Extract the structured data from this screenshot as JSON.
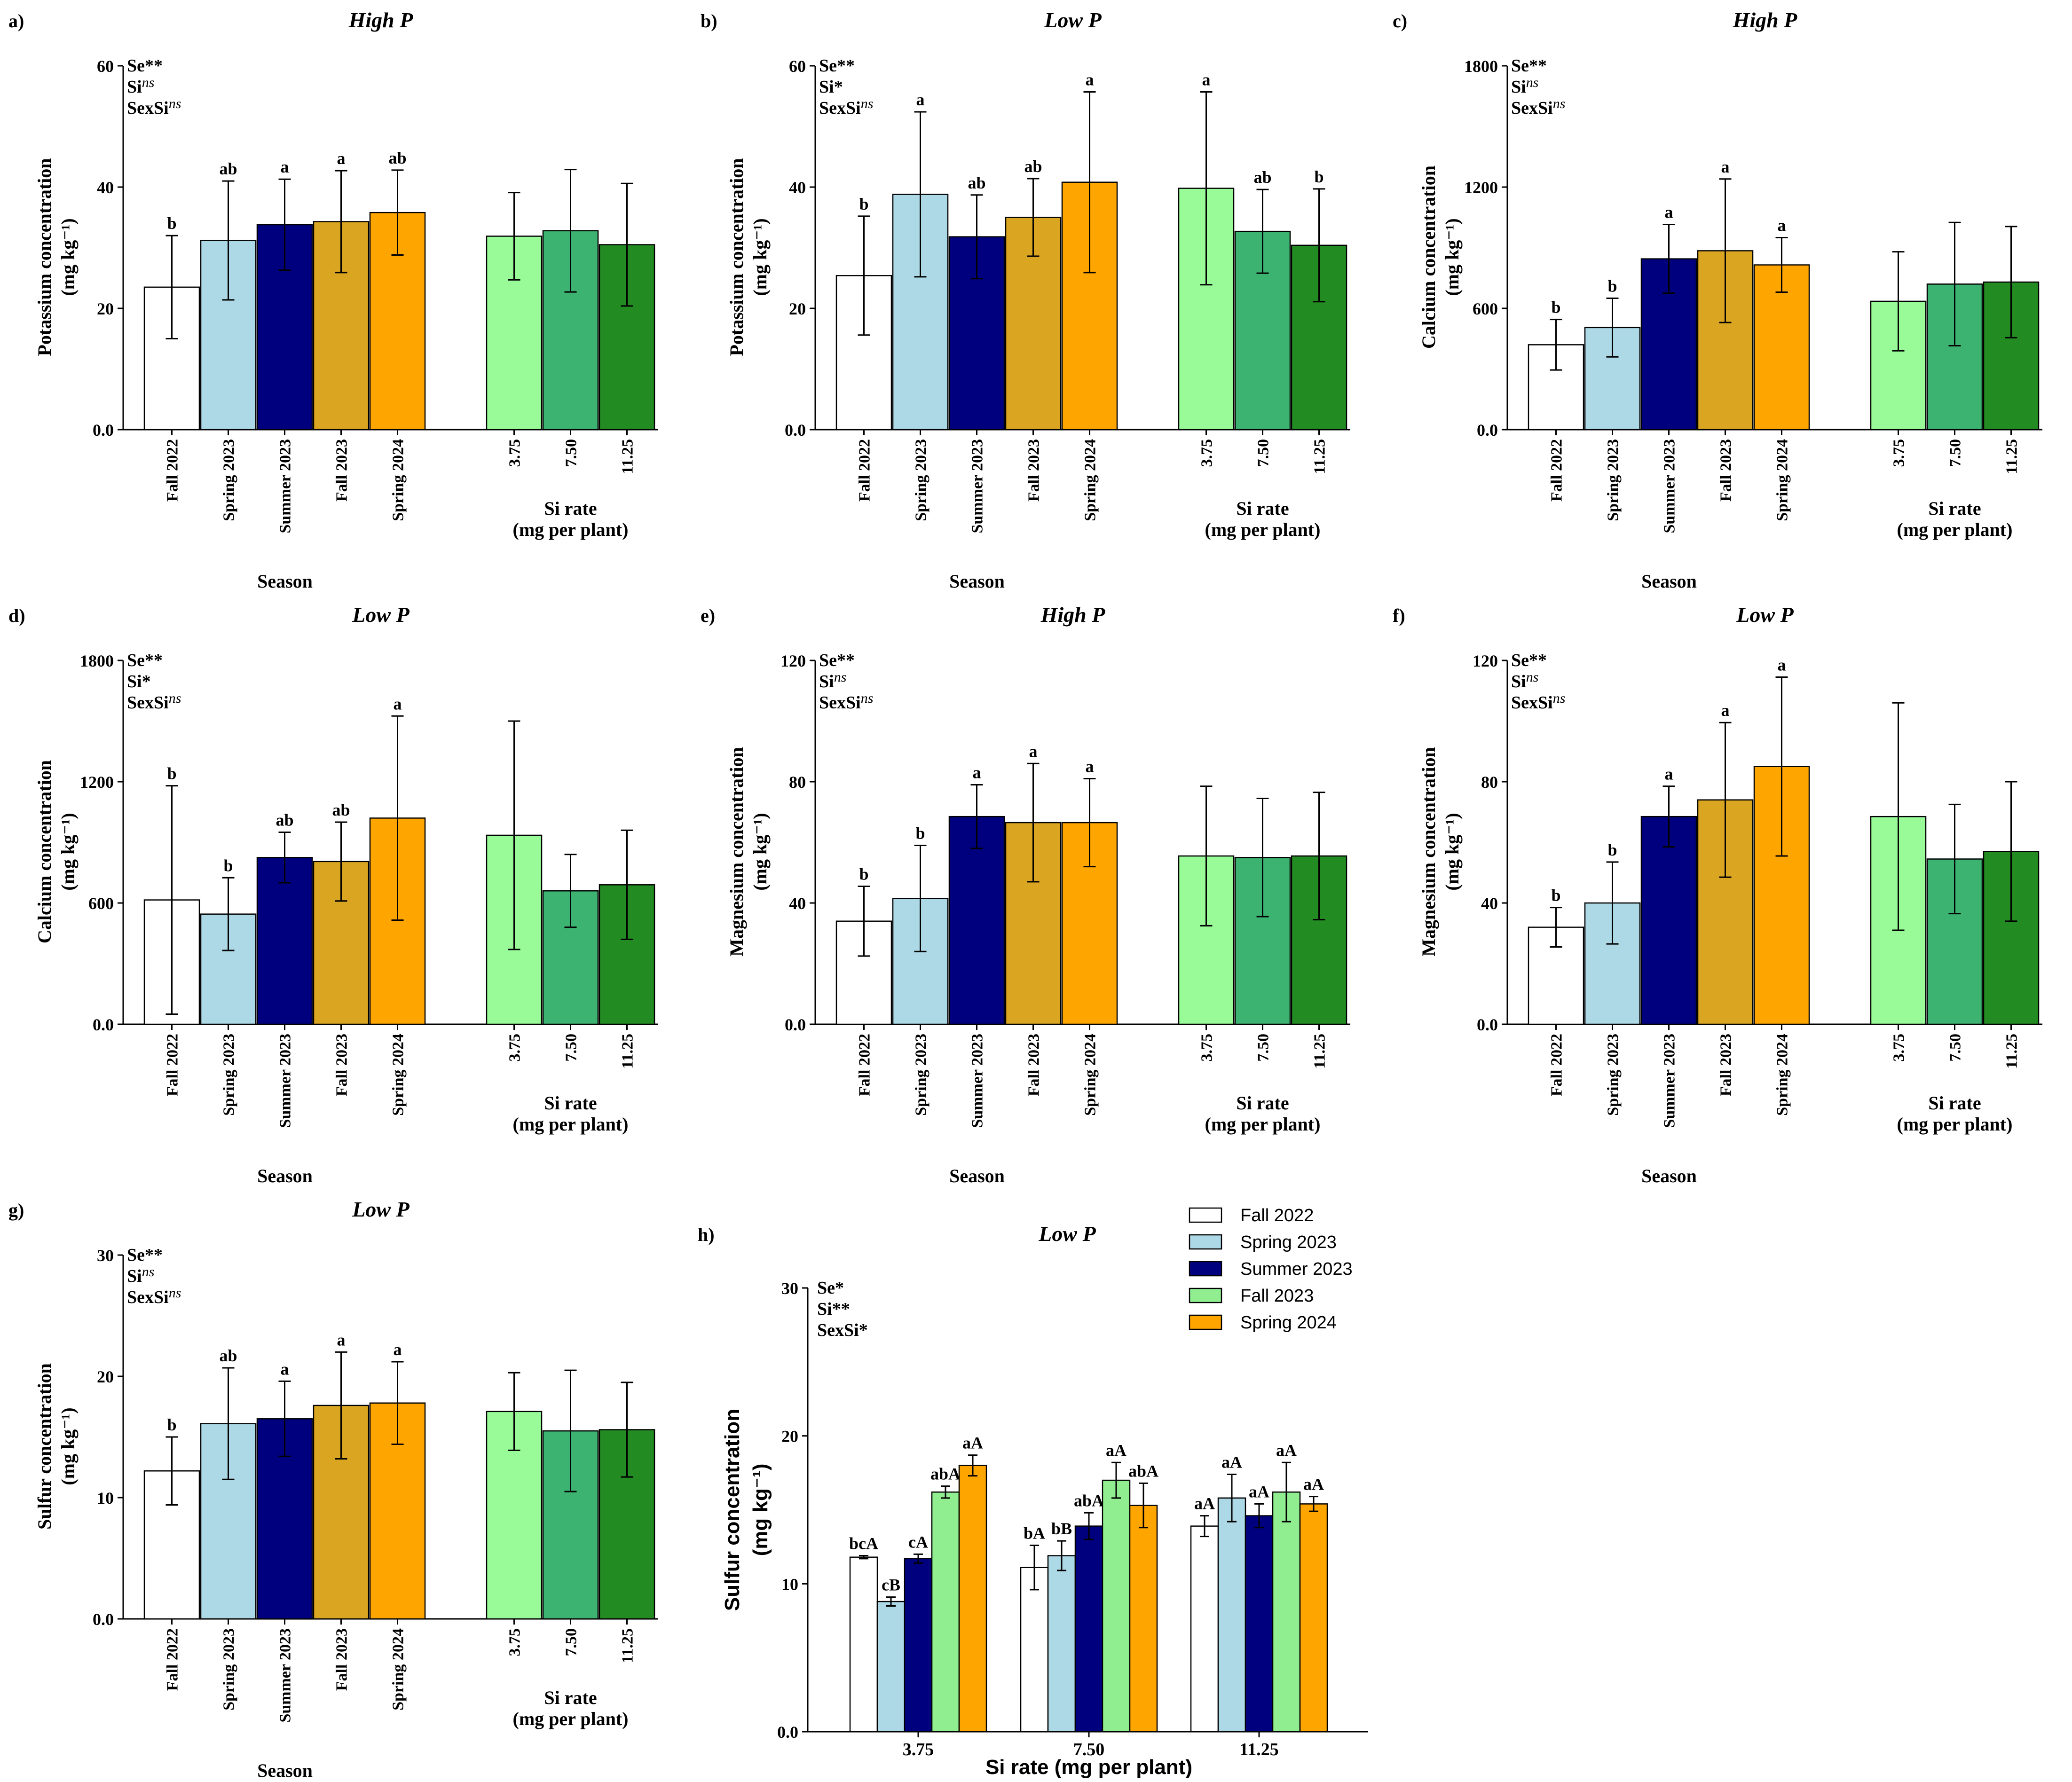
{
  "figure": {
    "season_colors": {
      "Fall 2022": "#ffffff",
      "Spring 2023": "#add8e6",
      "Summer 2023": "#00007f",
      "Fall 2023": "#daa520",
      "Spring 2024": "#ffa500",
      "3.75": "#98fb98",
      "7.50": "#3cb371",
      "11.25": "#228b22"
    },
    "h_colors": {
      "Fall 2022": "#ffffff",
      "Spring 2023": "#add8e6",
      "Summer 2023": "#00007f",
      "Fall 2023": "#90ee90",
      "Spring 2024": "#ffa500"
    },
    "legend": {
      "entries": [
        "Fall 2022",
        "Spring 2023",
        "Summer 2023",
        "Fall 2023",
        "Spring 2024"
      ]
    }
  },
  "chart_data": [
    {
      "type": "bar",
      "panel": "a)",
      "title": "High P",
      "ylabel": "Potassium concentration",
      "yunit": "(mg kg⁻¹)",
      "ylim": [
        0,
        60
      ],
      "yticks": [
        "0.0",
        "20",
        "40",
        "60"
      ],
      "stats": [
        [
          "Se",
          "**"
        ],
        [
          "Si",
          "ns"
        ],
        [
          "SexSi",
          "ns"
        ]
      ],
      "season_xlabel": "Season",
      "si_xlabel": [
        "Si rate",
        "(mg per plant)"
      ],
      "bars": [
        {
          "label": "Fall 2022",
          "value": 23.5,
          "err": 8.5,
          "letter": "b"
        },
        {
          "label": "Spring 2023",
          "value": 31.2,
          "err": 9.8,
          "letter": "ab"
        },
        {
          "label": "Summer 2023",
          "value": 33.8,
          "err": 7.5,
          "letter": "a"
        },
        {
          "label": "Fall 2023",
          "value": 34.3,
          "err": 8.4,
          "letter": "a"
        },
        {
          "label": "Spring 2024",
          "value": 35.8,
          "err": 7.0,
          "letter": "ab"
        },
        {
          "label": "3.75",
          "value": 31.9,
          "err": 7.2,
          "letter": ""
        },
        {
          "label": "7.50",
          "value": 32.8,
          "err": 10.1,
          "letter": ""
        },
        {
          "label": "11.25",
          "value": 30.5,
          "err": 10.1,
          "letter": ""
        }
      ]
    },
    {
      "type": "bar",
      "panel": "b)",
      "title": "Low P",
      "ylabel": "Potassium concentration",
      "yunit": "(mg kg⁻¹)",
      "ylim": [
        0,
        60
      ],
      "yticks": [
        "0.0",
        "20",
        "40",
        "60"
      ],
      "stats": [
        [
          "Se",
          "**"
        ],
        [
          "Si",
          "*"
        ],
        [
          "SexSi",
          "ns"
        ]
      ],
      "season_xlabel": "Season",
      "si_xlabel": [
        "Si rate",
        "(mg per plant)"
      ],
      "bars": [
        {
          "label": "Fall 2022",
          "value": 25.4,
          "err": 9.8,
          "letter": "b"
        },
        {
          "label": "Spring 2023",
          "value": 38.8,
          "err": 13.6,
          "letter": "a"
        },
        {
          "label": "Summer 2023",
          "value": 31.8,
          "err": 6.9,
          "letter": "ab"
        },
        {
          "label": "Fall 2023",
          "value": 35.0,
          "err": 6.4,
          "letter": "ab"
        },
        {
          "label": "Spring 2024",
          "value": 40.8,
          "err": 14.9,
          "letter": "a"
        },
        {
          "label": "3.75",
          "value": 39.8,
          "err": 15.9,
          "letter": "a"
        },
        {
          "label": "7.50",
          "value": 32.7,
          "err": 6.9,
          "letter": "ab"
        },
        {
          "label": "11.25",
          "value": 30.4,
          "err": 9.3,
          "letter": "b"
        }
      ]
    },
    {
      "type": "bar",
      "panel": "c)",
      "title": "High P",
      "ylabel": "Calcium concentration",
      "yunit": "(mg kg⁻¹)",
      "ylim": [
        0,
        1800
      ],
      "yticks": [
        "0.0",
        "600",
        "1200",
        "1800"
      ],
      "stats": [
        [
          "Se",
          "**"
        ],
        [
          "Si",
          "ns"
        ],
        [
          "SexSi",
          "ns"
        ]
      ],
      "season_xlabel": "Season",
      "si_xlabel": [
        "Si rate",
        "(mg per plant)"
      ],
      "bars": [
        {
          "label": "Fall 2022",
          "value": 420,
          "err": 125,
          "letter": "b"
        },
        {
          "label": "Spring 2023",
          "value": 505,
          "err": 145,
          "letter": "b"
        },
        {
          "label": "Summer 2023",
          "value": 845,
          "err": 170,
          "letter": "a"
        },
        {
          "label": "Fall 2023",
          "value": 885,
          "err": 355,
          "letter": "a"
        },
        {
          "label": "Spring 2024",
          "value": 815,
          "err": 135,
          "letter": "a"
        },
        {
          "label": "3.75",
          "value": 635,
          "err": 245,
          "letter": ""
        },
        {
          "label": "7.50",
          "value": 720,
          "err": 305,
          "letter": ""
        },
        {
          "label": "11.25",
          "value": 730,
          "err": 275,
          "letter": ""
        }
      ]
    },
    {
      "type": "bar",
      "panel": "d)",
      "title": "Low P",
      "ylabel": "Calcium concentration",
      "yunit": "(mg kg⁻¹)",
      "ylim": [
        0,
        1800
      ],
      "yticks": [
        "0.0",
        "600",
        "1200",
        "1800"
      ],
      "stats": [
        [
          "Se",
          "**"
        ],
        [
          "Si",
          "*"
        ],
        [
          "SexSi",
          "ns"
        ]
      ],
      "season_xlabel": "Season",
      "si_xlabel": [
        "Si rate",
        "(mg per plant)"
      ],
      "bars": [
        {
          "label": "Fall 2022",
          "value": 615,
          "err": 565,
          "letter": "b"
        },
        {
          "label": "Spring 2023",
          "value": 545,
          "err": 180,
          "letter": "b"
        },
        {
          "label": "Summer 2023",
          "value": 825,
          "err": 125,
          "letter": "ab"
        },
        {
          "label": "Fall 2023",
          "value": 805,
          "err": 195,
          "letter": "ab"
        },
        {
          "label": "Spring 2024",
          "value": 1020,
          "err": 505,
          "letter": "a"
        },
        {
          "label": "3.75",
          "value": 935,
          "err": 565,
          "letter": ""
        },
        {
          "label": "7.50",
          "value": 660,
          "err": 180,
          "letter": ""
        },
        {
          "label": "11.25",
          "value": 690,
          "err": 270,
          "letter": ""
        }
      ]
    },
    {
      "type": "bar",
      "panel": "e)",
      "title": "High P",
      "ylabel": "Magnesium concentration",
      "yunit": "(mg kg⁻¹)",
      "ylim": [
        0,
        120
      ],
      "yticks": [
        "0.0",
        "40",
        "80",
        "120"
      ],
      "stats": [
        [
          "Se",
          "**"
        ],
        [
          "Si",
          "ns"
        ],
        [
          "SexSi",
          "ns"
        ]
      ],
      "season_xlabel": "Season",
      "si_xlabel": [
        "Si rate",
        "(mg per plant)"
      ],
      "bars": [
        {
          "label": "Fall 2022",
          "value": 34.0,
          "err": 11.5,
          "letter": "b"
        },
        {
          "label": "Spring 2023",
          "value": 41.5,
          "err": 17.5,
          "letter": "b"
        },
        {
          "label": "Summer 2023",
          "value": 68.5,
          "err": 10.5,
          "letter": "a"
        },
        {
          "label": "Fall 2023",
          "value": 66.5,
          "err": 19.5,
          "letter": "a"
        },
        {
          "label": "Spring 2024",
          "value": 66.5,
          "err": 14.5,
          "letter": "a"
        },
        {
          "label": "3.75",
          "value": 55.5,
          "err": 23.0,
          "letter": ""
        },
        {
          "label": "7.50",
          "value": 55.0,
          "err": 19.5,
          "letter": ""
        },
        {
          "label": "11.25",
          "value": 55.5,
          "err": 21.0,
          "letter": ""
        }
      ]
    },
    {
      "type": "bar",
      "panel": "f)",
      "title": "Low P",
      "ylabel": "Magnesium concentration",
      "yunit": "(mg kg⁻¹)",
      "ylim": [
        0,
        120
      ],
      "yticks": [
        "0.0",
        "40",
        "80",
        "120"
      ],
      "stats": [
        [
          "Se",
          "**"
        ],
        [
          "Si",
          "ns"
        ],
        [
          "SexSi",
          "ns"
        ]
      ],
      "season_xlabel": "Season",
      "si_xlabel": [
        "Si rate",
        "(mg per plant)"
      ],
      "bars": [
        {
          "label": "Fall 2022",
          "value": 32.0,
          "err": 6.5,
          "letter": "b"
        },
        {
          "label": "Spring 2023",
          "value": 40.0,
          "err": 13.5,
          "letter": "b"
        },
        {
          "label": "Summer 2023",
          "value": 68.5,
          "err": 10.0,
          "letter": "a"
        },
        {
          "label": "Fall 2023",
          "value": 74.0,
          "err": 25.5,
          "letter": "a"
        },
        {
          "label": "Spring 2024",
          "value": 85.0,
          "err": 29.5,
          "letter": "a"
        },
        {
          "label": "3.75",
          "value": 68.5,
          "err": 37.5,
          "letter": ""
        },
        {
          "label": "7.50",
          "value": 54.5,
          "err": 18.0,
          "letter": ""
        },
        {
          "label": "11.25",
          "value": 57.0,
          "err": 23.0,
          "letter": ""
        }
      ]
    },
    {
      "type": "bar",
      "panel": "g)",
      "title": "Low P",
      "ylabel": "Sulfur concentration",
      "yunit": "(mg kg⁻¹)",
      "ylim": [
        0,
        30
      ],
      "yticks": [
        "0.0",
        "10",
        "20",
        "30"
      ],
      "stats": [
        [
          "Se",
          "**"
        ],
        [
          "Si",
          "ns"
        ],
        [
          "SexSi",
          "ns"
        ]
      ],
      "season_xlabel": "Season",
      "si_xlabel": [
        "Si rate",
        "(mg per plant)"
      ],
      "bars": [
        {
          "label": "Fall 2022",
          "value": 12.2,
          "err": 2.8,
          "letter": "b"
        },
        {
          "label": "Spring 2023",
          "value": 16.1,
          "err": 4.6,
          "letter": "ab"
        },
        {
          "label": "Summer 2023",
          "value": 16.5,
          "err": 3.1,
          "letter": "a"
        },
        {
          "label": "Fall 2023",
          "value": 17.6,
          "err": 4.4,
          "letter": "a"
        },
        {
          "label": "Spring 2024",
          "value": 17.8,
          "err": 3.4,
          "letter": "a"
        },
        {
          "label": "3.75",
          "value": 17.1,
          "err": 3.2,
          "letter": ""
        },
        {
          "label": "7.50",
          "value": 15.5,
          "err": 5.0,
          "letter": ""
        },
        {
          "label": "11.25",
          "value": 15.6,
          "err": 3.9,
          "letter": ""
        }
      ]
    },
    {
      "type": "bar",
      "panel": "h)",
      "title": "Low P",
      "ylabel": "Sulfur concentration",
      "yunit": "(mg kg⁻¹)",
      "ylim": [
        0,
        30
      ],
      "yticks": [
        "0.0",
        "10",
        "20",
        "30"
      ],
      "xlabel": "Si rate (mg per plant)",
      "stats": [
        [
          "Se",
          "*"
        ],
        [
          "Si",
          "**"
        ],
        [
          "SexSi",
          "*"
        ]
      ],
      "categories": [
        "3.75",
        "7.50",
        "11.25"
      ],
      "series": [
        {
          "name": "Fall 2022",
          "values": [
            11.8,
            11.1,
            13.9
          ],
          "errors": [
            0.1,
            1.5,
            0.7
          ],
          "letters": [
            "bcA",
            "bA",
            "aA"
          ]
        },
        {
          "name": "Spring 2023",
          "values": [
            8.8,
            11.9,
            15.8
          ],
          "errors": [
            0.3,
            1.0,
            1.6
          ],
          "letters": [
            "cB",
            "bB",
            "aA"
          ]
        },
        {
          "name": "Summer 2023",
          "values": [
            11.7,
            13.9,
            14.6
          ],
          "errors": [
            0.3,
            0.9,
            0.8
          ],
          "letters": [
            "cA",
            "abA",
            "aA"
          ]
        },
        {
          "name": "Fall 2023",
          "values": [
            16.2,
            17.0,
            16.2
          ],
          "errors": [
            0.4,
            1.2,
            2.0
          ],
          "letters": [
            "abA",
            "aA",
            "aA"
          ]
        },
        {
          "name": "Spring 2024",
          "values": [
            18.0,
            15.3,
            15.4
          ],
          "errors": [
            0.7,
            1.5,
            0.5
          ],
          "letters": [
            "aA",
            "abA",
            "aA"
          ]
        }
      ]
    }
  ]
}
